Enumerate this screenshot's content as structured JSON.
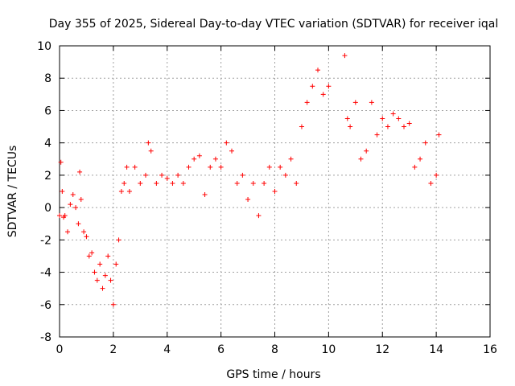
{
  "chart_data": {
    "type": "scatter",
    "title": "Day 355 of 2025, Sidereal Day-to-day VTEC variation (SDTVAR) for receiver iqal",
    "xlabel": "GPS time / hours",
    "ylabel": "SDTVAR / TECUs",
    "xlim": [
      0,
      16
    ],
    "ylim": [
      -8,
      10
    ],
    "xticks": [
      "0",
      "2",
      "4",
      "6",
      "8",
      "10",
      "12",
      "14",
      "16"
    ],
    "yticks": [
      "-8",
      "-6",
      "-4",
      "-2",
      "0",
      "2",
      "4",
      "6",
      "8",
      "10"
    ],
    "grid": true,
    "marker": "+",
    "series": [
      {
        "name": "SDTVAR",
        "color": "#ff0000",
        "x": [
          0.0,
          0.05,
          0.1,
          0.15,
          0.2,
          0.3,
          0.4,
          0.5,
          0.6,
          0.7,
          0.75,
          0.8,
          0.9,
          1.0,
          1.1,
          1.2,
          1.3,
          1.4,
          1.5,
          1.6,
          1.7,
          1.8,
          1.9,
          2.0,
          2.1,
          2.2,
          2.3,
          2.4,
          2.5,
          2.6,
          2.8,
          3.0,
          3.2,
          3.3,
          3.4,
          3.6,
          3.8,
          4.0,
          4.2,
          4.4,
          4.6,
          4.8,
          5.0,
          5.2,
          5.4,
          5.6,
          5.8,
          6.0,
          6.2,
          6.4,
          6.6,
          6.8,
          7.0,
          7.2,
          7.4,
          7.6,
          7.8,
          8.0,
          8.2,
          8.4,
          8.6,
          8.8,
          9.0,
          9.2,
          9.4,
          9.6,
          9.8,
          10.0,
          10.6,
          10.7,
          10.8,
          11.0,
          11.2,
          11.4,
          11.6,
          11.8,
          12.0,
          12.2,
          12.4,
          12.6,
          12.8,
          13.0,
          13.2,
          13.4,
          13.6,
          13.8,
          14.0,
          14.1
        ],
        "y": [
          -0.5,
          2.8,
          1.0,
          -0.6,
          -0.5,
          -1.5,
          0.2,
          0.8,
          0.0,
          -1.0,
          2.2,
          0.5,
          -1.5,
          -1.8,
          -3.0,
          -2.8,
          -4.0,
          -4.5,
          -3.5,
          -5.0,
          -4.2,
          -3.0,
          -4.5,
          -6.0,
          -3.5,
          -2.0,
          1.0,
          1.5,
          2.5,
          1.0,
          2.5,
          1.5,
          2.0,
          4.0,
          3.5,
          1.5,
          2.0,
          1.8,
          1.5,
          2.0,
          1.5,
          2.5,
          3.0,
          3.2,
          0.8,
          2.5,
          3.0,
          2.5,
          4.0,
          3.5,
          1.5,
          2.0,
          0.5,
          1.5,
          -0.5,
          1.5,
          2.5,
          1.0,
          2.5,
          2.0,
          3.0,
          1.5,
          5.0,
          6.5,
          7.5,
          8.5,
          7.0,
          7.5,
          9.4,
          5.5,
          5.0,
          6.5,
          3.0,
          3.5,
          6.5,
          4.5,
          5.5,
          5.0,
          5.8,
          5.5,
          5.0,
          5.2,
          2.5,
          3.0,
          4.0,
          1.5,
          2.0,
          4.5
        ]
      }
    ]
  }
}
